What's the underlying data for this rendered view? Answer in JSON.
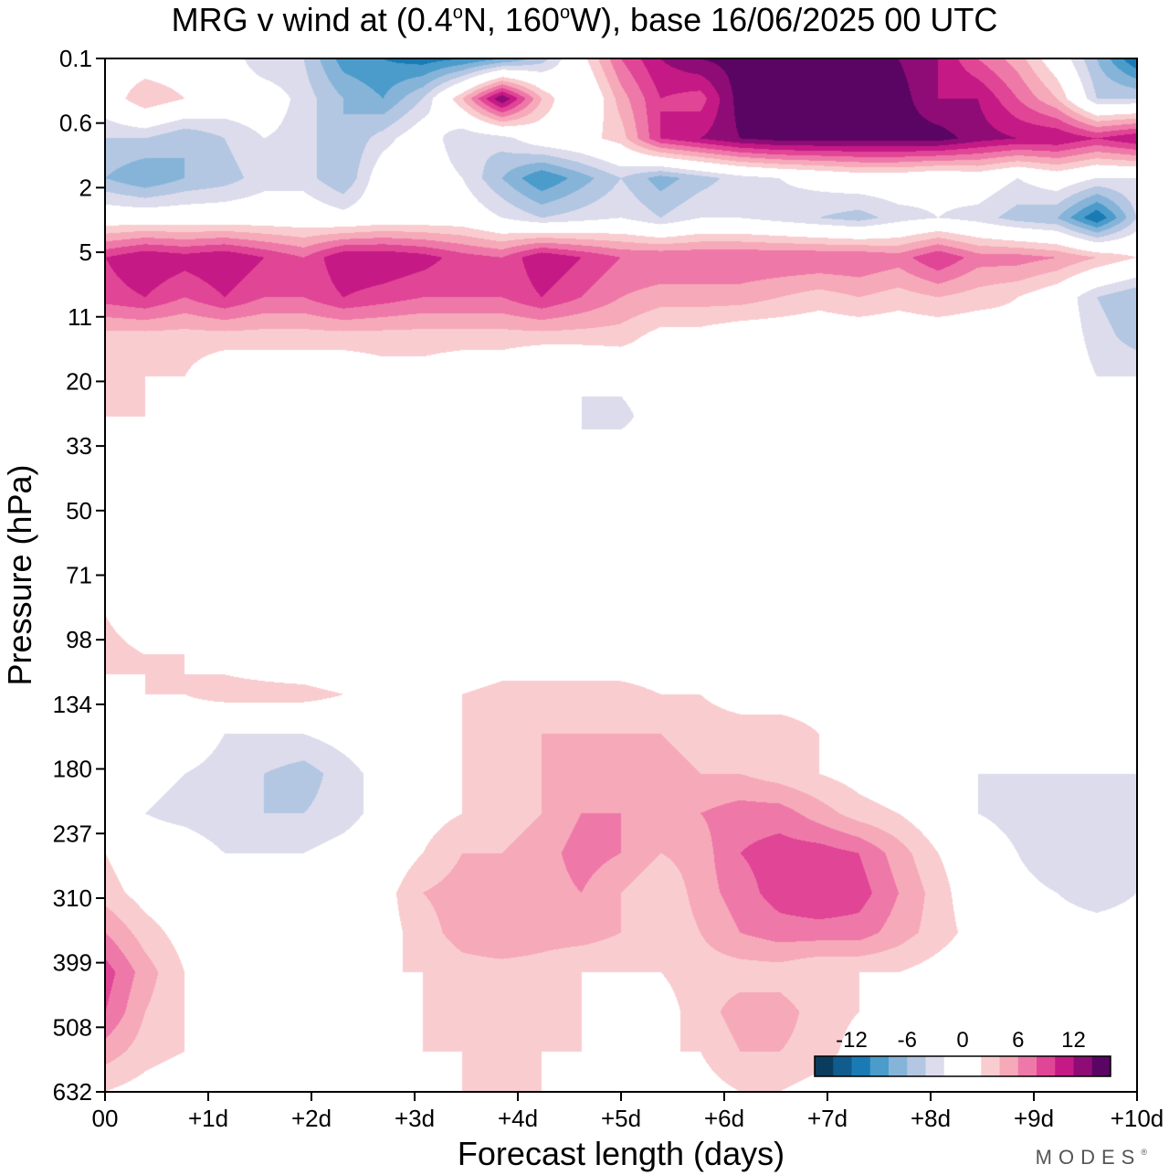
{
  "title": {
    "prefix": "MRG v wind at (0.4",
    "deg1": "o",
    "mid": "N, 160",
    "deg2": "o",
    "suffix": "W),  base 16/06/2025  00 UTC"
  },
  "watermark": {
    "text": "MODES",
    "mark": "®"
  },
  "chart_data": {
    "type": "heatmap",
    "xlabel": "Forecast length (days)",
    "ylabel": "Pressure (hPa)",
    "x_ticks": [
      {
        "v": 0,
        "label": "00"
      },
      {
        "v": 1,
        "label": "+1d"
      },
      {
        "v": 2,
        "label": "+2d"
      },
      {
        "v": 3,
        "label": "+3d"
      },
      {
        "v": 4,
        "label": "+4d"
      },
      {
        "v": 5,
        "label": "+5d"
      },
      {
        "v": 6,
        "label": "+6d"
      },
      {
        "v": 7,
        "label": "+7d"
      },
      {
        "v": 8,
        "label": "+8d"
      },
      {
        "v": 9,
        "label": "+9d"
      },
      {
        "v": 10,
        "label": "+10d"
      }
    ],
    "y_levels": [
      "0.1",
      "0.6",
      "2",
      "5",
      "11",
      "20",
      "33",
      "50",
      "71",
      "98",
      "134",
      "180",
      "237",
      "310",
      "399",
      "508",
      "632"
    ],
    "xlim": [
      0,
      10
    ],
    "colorbar": {
      "labels": [
        {
          "at": -12,
          "text": "-12"
        },
        {
          "at": -6,
          "text": "-6"
        },
        {
          "at": 0,
          "text": "0"
        },
        {
          "at": 6,
          "text": "6"
        },
        {
          "at": 12,
          "text": "12"
        }
      ],
      "colors": [
        "#0b3c5d",
        "#105c8c",
        "#1a7bb4",
        "#4b9bcb",
        "#86b4d8",
        "#b3c6e2",
        "#dcdcec",
        "#ffffff",
        "#ffffff",
        "#f9cdd0",
        "#f6a9b8",
        "#ee79a9",
        "#e14596",
        "#c51a85",
        "#8f0c76",
        "#5a0563"
      ],
      "range": [
        -16,
        16
      ]
    },
    "grid": [
      [
        0,
        0,
        0,
        0,
        -4,
        -4,
        -9,
        -10,
        -11,
        -10,
        -8,
        -5,
        1,
        8,
        12,
        14,
        15,
        15,
        15,
        14,
        14,
        12,
        8,
        5,
        0,
        -6,
        -12
      ],
      [
        0,
        4,
        2,
        0,
        0,
        -3,
        -6,
        -8,
        -4,
        4,
        14,
        4,
        -2,
        5,
        10,
        9,
        15,
        15,
        15,
        15,
        15,
        12,
        12,
        8,
        4,
        -4,
        -4
      ],
      [
        -4,
        -4,
        -6,
        -4,
        -2,
        -3,
        -6,
        -3,
        0,
        -4,
        -3,
        0,
        1,
        3,
        10,
        12,
        14,
        15,
        15,
        15,
        15,
        15,
        13,
        12,
        12,
        10,
        12
      ],
      [
        -6,
        -8,
        -6,
        -5,
        -3,
        -3,
        -6,
        0,
        0,
        -2,
        -6,
        -10,
        -7,
        -4,
        -7,
        -5,
        -3,
        -2,
        -1,
        0,
        0,
        -1,
        0,
        -2,
        0,
        -2,
        -2
      ],
      [
        0,
        0,
        0,
        0,
        0,
        0,
        -1,
        0,
        0,
        0,
        -2,
        -4,
        -3,
        -2,
        -4,
        -2,
        -2,
        -3,
        -4,
        -5,
        -3,
        -2,
        -3,
        -5,
        -6,
        -12,
        -4
      ],
      [
        10,
        12,
        11,
        12,
        10,
        8,
        12,
        12,
        11,
        9,
        8,
        12,
        10,
        8,
        8,
        8,
        8,
        8,
        8,
        8,
        7,
        10,
        7,
        7,
        6,
        4,
        2
      ],
      [
        9,
        10,
        8,
        10,
        8,
        8,
        10,
        9,
        8,
        8,
        8,
        10,
        8,
        6,
        5,
        5,
        5,
        4,
        3,
        4,
        3,
        4,
        3,
        2,
        0,
        -4,
        -6
      ],
      [
        3,
        3,
        3,
        3,
        3,
        3,
        3,
        3,
        3,
        3,
        3,
        3,
        3,
        3,
        1,
        1,
        0,
        0,
        0,
        0,
        0,
        0,
        0,
        1,
        0,
        -3,
        -5
      ],
      [
        2,
        2,
        2,
        0,
        0,
        0,
        0,
        1,
        1,
        0,
        0,
        -2,
        -2,
        -1,
        0,
        0,
        0,
        -1,
        -2,
        -1,
        0,
        0,
        0,
        0,
        0,
        -2,
        -2
      ],
      [
        2,
        2,
        0,
        0,
        0,
        0,
        0,
        2,
        2,
        0,
        0,
        -2,
        -2,
        -3,
        0,
        0,
        0,
        0,
        0,
        0,
        0,
        0,
        0,
        0,
        0,
        -2,
        -1
      ],
      [
        1,
        0,
        0,
        0,
        0,
        0,
        2,
        1,
        0,
        0,
        0,
        0,
        -2,
        0,
        0,
        0,
        0,
        0,
        0,
        0,
        0,
        0,
        0,
        0,
        2,
        0,
        0
      ],
      [
        0,
        0,
        0,
        0,
        0,
        0,
        0,
        0,
        0,
        0,
        0,
        0,
        0,
        0,
        0,
        0,
        0,
        0,
        0,
        0,
        0,
        0,
        0,
        0,
        0,
        0,
        0
      ],
      [
        0,
        0,
        0,
        0,
        0,
        0,
        0,
        0,
        0,
        0,
        0,
        0,
        0,
        0,
        0,
        0,
        0,
        0,
        0,
        0,
        0,
        0,
        0,
        0,
        0,
        0,
        0
      ],
      [
        0,
        0,
        0,
        0,
        0,
        0,
        0,
        0,
        0,
        2,
        0,
        0,
        0,
        0,
        0,
        0,
        0,
        0,
        0,
        0,
        0,
        0,
        0,
        0,
        0,
        0,
        0
      ],
      [
        2,
        0,
        0,
        0,
        -2,
        0,
        0,
        0,
        -2,
        0,
        2,
        2,
        0,
        0,
        0,
        0,
        0,
        0,
        0,
        0,
        0,
        0,
        0,
        0,
        -2,
        0,
        0
      ],
      [
        3,
        2,
        2,
        1,
        0,
        -1,
        -2,
        -2,
        -1,
        -1,
        0,
        0,
        0,
        0,
        0,
        0,
        0,
        0,
        0,
        0,
        0,
        -1,
        -2,
        -2,
        -2,
        -2,
        -2
      ],
      [
        1,
        2,
        2,
        3,
        3,
        3,
        2,
        2,
        2,
        2,
        3,
        3,
        3,
        3,
        2,
        2,
        1,
        1,
        1,
        1,
        0,
        0,
        0,
        0,
        0,
        -2,
        -2
      ],
      [
        0,
        0,
        0,
        -2,
        -2,
        -2,
        -1,
        0,
        0,
        2,
        3,
        4,
        4,
        4,
        4,
        3,
        3,
        3,
        2,
        2,
        2,
        0,
        2,
        2,
        0,
        0,
        -2
      ],
      [
        -1,
        -1,
        -2,
        -3,
        -4,
        -5,
        -3,
        -1,
        0,
        2,
        3,
        4,
        5,
        6,
        5,
        4,
        4,
        3,
        2,
        1,
        0,
        -1,
        -2,
        -2,
        -2,
        -2,
        -2
      ],
      [
        0,
        -2,
        -3,
        -4,
        -4,
        -4,
        -3,
        -1,
        1,
        2,
        3,
        4,
        6,
        6,
        6,
        6,
        7,
        7,
        5,
        3,
        2,
        0,
        -2,
        -3,
        -3,
        -3,
        -2
      ],
      [
        2,
        0,
        0,
        -2,
        -2,
        -2,
        -1,
        0,
        2,
        4,
        4,
        5,
        7,
        6,
        4,
        5,
        8,
        9,
        9,
        8,
        5,
        2,
        0,
        -2,
        -4,
        -4,
        -2
      ],
      [
        3,
        1,
        0,
        0,
        0,
        0,
        0,
        1,
        4,
        5,
        6,
        5,
        6,
        4,
        2,
        5,
        7,
        9,
        10,
        9,
        6,
        3,
        0,
        -1,
        -2,
        -3,
        -2
      ],
      [
        6,
        3,
        1,
        0,
        0,
        0,
        0,
        1,
        3,
        5,
        6,
        5,
        5,
        4,
        2,
        4,
        6,
        7,
        7,
        7,
        5,
        3,
        1,
        0,
        -1,
        -1,
        -1
      ],
      [
        9,
        5,
        2,
        0,
        0,
        0,
        1,
        2,
        2,
        3,
        3,
        3,
        2,
        2,
        2,
        3,
        3,
        3,
        2,
        2,
        2,
        1,
        0,
        0,
        0,
        0,
        0
      ],
      [
        8,
        4,
        2,
        0,
        0,
        0,
        0,
        1,
        2,
        3,
        3,
        3,
        2,
        1,
        1,
        3,
        5,
        5,
        3,
        2,
        0,
        0,
        0,
        0,
        1,
        0,
        0
      ],
      [
        5,
        3,
        2,
        1,
        0,
        0,
        0,
        1,
        2,
        2,
        2,
        2,
        2,
        2,
        2,
        2,
        4,
        4,
        3,
        1,
        0,
        0,
        0,
        0,
        0,
        -1,
        -1
      ],
      [
        2,
        1,
        0,
        0,
        0,
        0,
        0,
        0,
        0,
        2,
        2,
        2,
        1,
        0,
        0,
        1,
        2,
        2,
        1,
        0,
        0,
        0,
        0,
        0,
        -1,
        -2,
        -2
      ]
    ]
  }
}
